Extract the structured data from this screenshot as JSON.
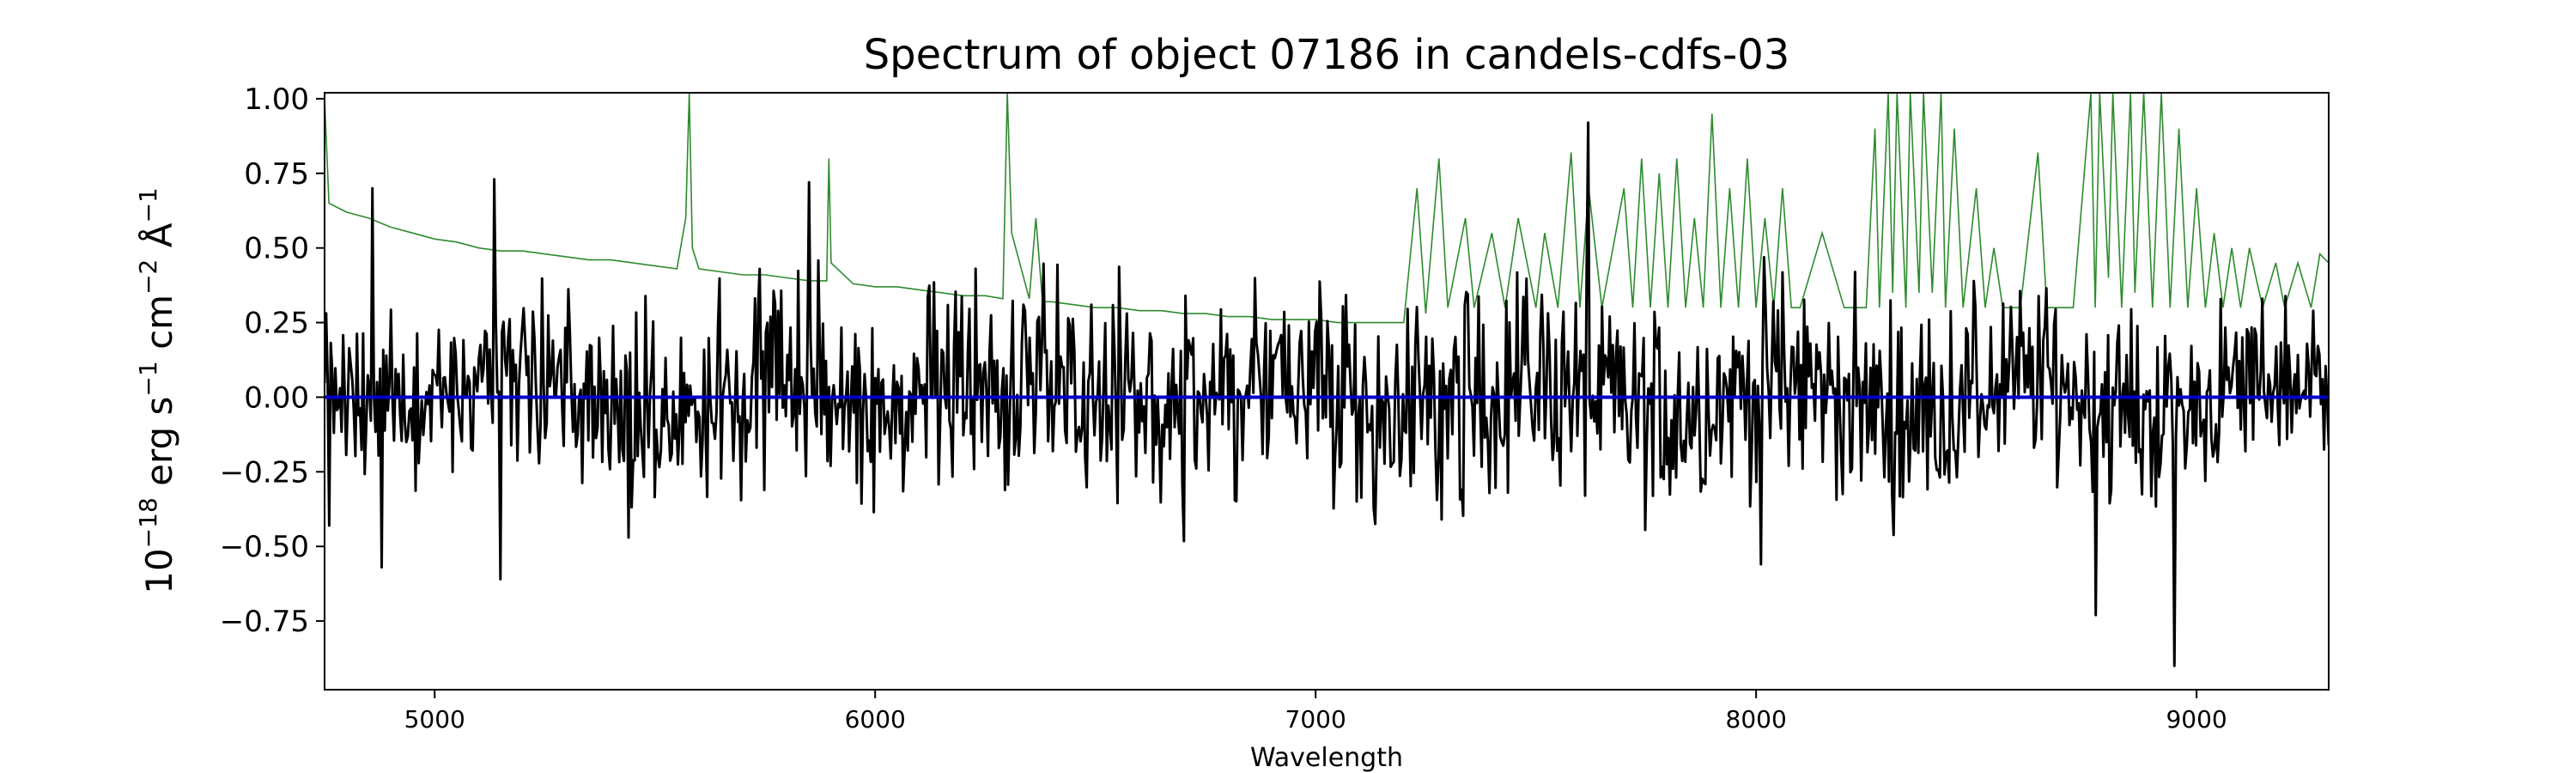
{
  "chart_data": {
    "type": "line",
    "title": "Spectrum of object 07186 in candels-cdfs-03",
    "xlabel": "Wavelength",
    "ylabel": {
      "prefix": "10",
      "exponent": "−18",
      "text": " erg s",
      "s_exp": "−1",
      "cm": " cm",
      "cm_exp": "−2",
      "angstrom": " Å",
      "a_exp": "−1"
    },
    "xlim": [
      4750,
      9300
    ],
    "ylim": [
      -0.98,
      1.02
    ],
    "x_ticks": [
      5000,
      6000,
      7000,
      8000,
      9000
    ],
    "x_tick_labels": [
      "5000",
      "6000",
      "7000",
      "8000",
      "9000"
    ],
    "y_ticks": [
      -0.75,
      -0.5,
      -0.25,
      0.0,
      0.25,
      0.5,
      0.75,
      1.0
    ],
    "y_tick_labels": [
      "−0.75",
      "−0.50",
      "−0.25",
      "0.00",
      "0.25",
      "0.50",
      "0.75",
      "1.00"
    ],
    "grid": false,
    "series": [
      {
        "role": "error spectrum",
        "color": "#2e8b2e",
        "x": [
          4750,
          4760,
          4800,
          4850,
          4900,
          4950,
          5000,
          5050,
          5100,
          5150,
          5200,
          5250,
          5300,
          5350,
          5400,
          5450,
          5500,
          5550,
          5570,
          5578,
          5585,
          5600,
          5650,
          5700,
          5750,
          5800,
          5850,
          5890,
          5895,
          5900,
          5950,
          6000,
          6050,
          6100,
          6150,
          6200,
          6250,
          6290,
          6300,
          6310,
          6350,
          6365,
          6380,
          6400,
          6450,
          6500,
          6550,
          6600,
          6650,
          6700,
          6750,
          6800,
          6850,
          6900,
          6950,
          7000,
          7050,
          7100,
          7150,
          7200,
          7230,
          7250,
          7280,
          7300,
          7340,
          7360,
          7400,
          7430,
          7460,
          7500,
          7520,
          7550,
          7580,
          7600,
          7620,
          7650,
          7700,
          7720,
          7740,
          7760,
          7780,
          7800,
          7820,
          7840,
          7860,
          7880,
          7900,
          7920,
          7940,
          7960,
          7980,
          8000,
          8020,
          8040,
          8060,
          8080,
          8100,
          8150,
          8200,
          8250,
          8270,
          8280,
          8300,
          8310,
          8320,
          8340,
          8350,
          8370,
          8380,
          8400,
          8420,
          8430,
          8450,
          8470,
          8500,
          8520,
          8540,
          8560,
          8600,
          8640,
          8660,
          8680,
          8700,
          8720,
          8760,
          8770,
          8780,
          8800,
          8810,
          8830,
          8850,
          8860,
          8880,
          8900,
          8920,
          8940,
          8960,
          8980,
          9000,
          9020,
          9040,
          9060,
          9080,
          9100,
          9120,
          9150,
          9180,
          9200,
          9230,
          9260,
          9280,
          9300
        ],
        "values": [
          1.0,
          0.65,
          0.62,
          0.6,
          0.57,
          0.55,
          0.53,
          0.52,
          0.5,
          0.49,
          0.49,
          0.48,
          0.47,
          0.46,
          0.46,
          0.45,
          0.44,
          0.43,
          0.6,
          1.02,
          0.5,
          0.43,
          0.42,
          0.41,
          0.41,
          0.4,
          0.39,
          0.39,
          0.8,
          0.45,
          0.38,
          0.37,
          0.37,
          0.36,
          0.35,
          0.34,
          0.34,
          0.33,
          1.02,
          0.55,
          0.33,
          0.6,
          0.32,
          0.32,
          0.31,
          0.3,
          0.3,
          0.29,
          0.29,
          0.28,
          0.28,
          0.27,
          0.27,
          0.26,
          0.26,
          0.26,
          0.25,
          0.25,
          0.25,
          0.25,
          0.7,
          0.28,
          0.8,
          0.3,
          0.6,
          0.3,
          0.55,
          0.3,
          0.6,
          0.3,
          0.55,
          0.3,
          0.82,
          0.3,
          0.7,
          0.3,
          0.7,
          0.3,
          0.8,
          0.3,
          0.75,
          0.3,
          0.8,
          0.3,
          0.6,
          0.3,
          0.95,
          0.3,
          0.7,
          0.3,
          0.8,
          0.3,
          0.6,
          0.3,
          0.7,
          0.3,
          0.3,
          0.55,
          0.3,
          0.3,
          0.9,
          0.3,
          1.02,
          0.35,
          1.02,
          0.3,
          1.02,
          0.35,
          1.02,
          0.35,
          1.02,
          0.3,
          0.9,
          0.3,
          0.7,
          0.3,
          0.5,
          0.3,
          0.3,
          0.82,
          0.3,
          0.3,
          0.3,
          0.3,
          1.02,
          0.3,
          1.02,
          0.4,
          1.02,
          0.3,
          1.02,
          0.35,
          1.02,
          0.3,
          1.02,
          0.3,
          0.9,
          0.3,
          0.7,
          0.3,
          0.55,
          0.3,
          0.5,
          0.3,
          0.5,
          0.3,
          0.45,
          0.3,
          0.45,
          0.3,
          0.48,
          0.45
        ]
      },
      {
        "role": "flux",
        "color": "#000000",
        "x_start": 4750,
        "x_end": 9300,
        "points": 1300,
        "noise_amplitude_min": 0.2,
        "noise_amplitude_max": 0.28,
        "notable_points": [
          {
            "x": 4760,
            "y": -0.43
          },
          {
            "x": 4860,
            "y": 0.7
          },
          {
            "x": 4880,
            "y": -0.57
          },
          {
            "x": 5135,
            "y": 0.73
          },
          {
            "x": 5150,
            "y": -0.61
          },
          {
            "x": 5440,
            "y": -0.47
          },
          {
            "x": 5850,
            "y": 0.72
          },
          {
            "x": 7330,
            "y": -0.31
          },
          {
            "x": 7620,
            "y": 0.92
          },
          {
            "x": 7610,
            "y": -0.33
          },
          {
            "x": 8010,
            "y": -0.56
          },
          {
            "x": 8770,
            "y": -0.73
          },
          {
            "x": 8950,
            "y": -0.9
          }
        ]
      },
      {
        "role": "zero line",
        "color": "#0000cc",
        "x": [
          4750,
          9300
        ],
        "values": [
          0,
          0
        ]
      }
    ]
  }
}
